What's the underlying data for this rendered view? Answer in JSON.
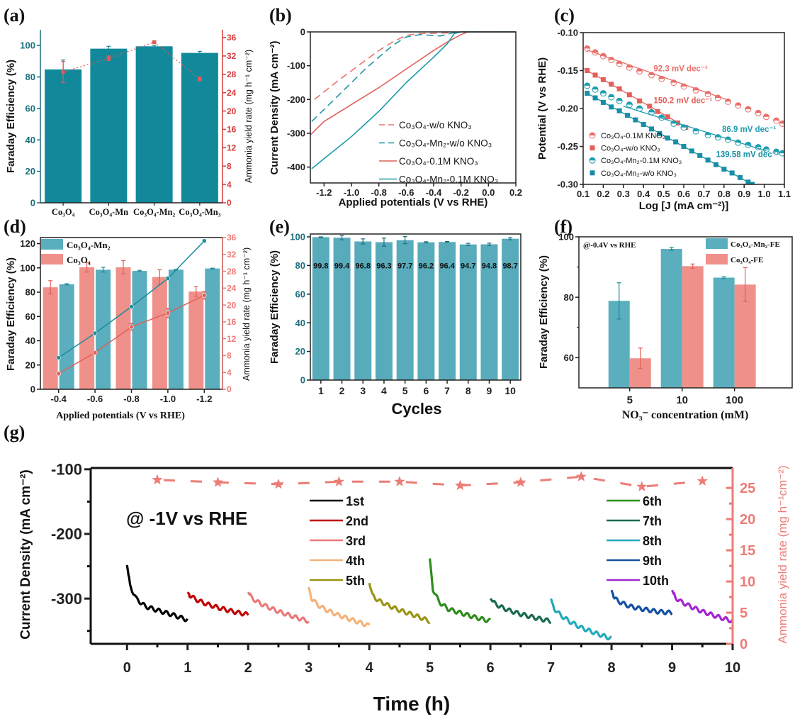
{
  "chart_data": [
    {
      "panel_label": "(a)",
      "type": "bar",
      "categories": [
        "Co₃O₄",
        "Co₃O₄-Mn",
        "Co₃O₄-Mn₂",
        "Co₃O₄-Mn₃"
      ],
      "ylabel": "Faraday Efficiency (%)",
      "y2label": "Ammonia yield rate (mg h⁻¹ cm⁻²)",
      "ylim": [
        0,
        110
      ],
      "y2lim": [
        0,
        37.7
      ],
      "yticks": [
        "0",
        "20",
        "40",
        "60",
        "80",
        "100"
      ],
      "y2ticks": [
        "0",
        "4",
        "8",
        "12",
        "16",
        "20",
        "24",
        "28",
        "32",
        "36"
      ],
      "bars": {
        "values": [
          84.8,
          98.0,
          99.5,
          95.3
        ],
        "errors": [
          6.0,
          1.5,
          0.5,
          1.0
        ]
      },
      "line": {
        "values": [
          28.5,
          31.5,
          35.0,
          27.0
        ],
        "errors": [
          2.3,
          0.5,
          0.3,
          0.4
        ]
      },
      "colors": {
        "bar": "#11899b",
        "line": "#e05a5a",
        "left_axis": "#1b6f7d",
        "right_axis": "#d83a3a"
      }
    },
    {
      "panel_label": "(b)",
      "type": "line",
      "xlabel": "Applied potentials (V vs RHE)",
      "ylabel": "Current Density (mA cm⁻²)",
      "xlim": [
        -1.3,
        0.2
      ],
      "ylim": [
        -447,
        0
      ],
      "xticks": [
        "-1.2",
        "-1.0",
        "-0.8",
        "-0.6",
        "-0.4",
        "-0.2",
        "0.0",
        "0.2"
      ],
      "yticks": [
        "0",
        "-100",
        "-200",
        "-300",
        "-400"
      ],
      "legend": "bottom-right",
      "series": [
        {
          "name": "Co₃O₄-w/o KNO₃",
          "style": "dashed",
          "color": "#e8736c",
          "x": [
            -1.27,
            -1.1,
            -1.0,
            -0.9,
            -0.8,
            -0.7,
            -0.6,
            -0.5,
            -0.3,
            -0.2,
            0.2
          ],
          "y": [
            -200,
            -145,
            -115,
            -85,
            -55,
            -30,
            -10,
            -5,
            -3,
            0,
            0
          ]
        },
        {
          "name": "Co₃O₄-Mn₂-w/o KNO₃",
          "style": "dashed",
          "color": "#1e96a6",
          "x": [
            -1.29,
            -1.1,
            -1.0,
            -0.9,
            -0.8,
            -0.7,
            -0.6,
            -0.5,
            -0.35,
            -0.25,
            -0.2,
            0.2
          ],
          "y": [
            -265,
            -190,
            -150,
            -110,
            -75,
            -40,
            -15,
            -8,
            -12,
            -2,
            0,
            0
          ]
        },
        {
          "name": "Co₃O₄-0.1M KNO₃",
          "style": "solid",
          "color": "#e0605a",
          "x": [
            -1.3,
            -1.2,
            -1.0,
            -0.8,
            -0.6,
            -0.4,
            -0.3,
            -0.2,
            -0.15,
            0.2
          ],
          "y": [
            -305,
            -265,
            -215,
            -165,
            -110,
            -55,
            -30,
            -8,
            0,
            0
          ]
        },
        {
          "name": "Co₃O₄-Mn₂-0.1M KNO₃",
          "style": "solid",
          "color": "#1a9aa8",
          "x": [
            -1.29,
            -1.2,
            -1.0,
            -0.8,
            -0.6,
            -0.4,
            -0.3,
            -0.25,
            -0.2,
            0.2
          ],
          "y": [
            -405,
            -375,
            -310,
            -235,
            -150,
            -75,
            -35,
            -5,
            0,
            0
          ]
        }
      ]
    },
    {
      "panel_label": "(c)",
      "type": "scatter",
      "xlabel": "Log [J (mA cm⁻²)]",
      "ylabel": "Potential (V vs RHE)",
      "xlim": [
        0.1,
        1.1
      ],
      "ylim": [
        -0.3,
        -0.1
      ],
      "xticks": [
        "0.1",
        "0.2",
        "0.3",
        "0.4",
        "0.5",
        "0.6",
        "0.7",
        "0.8",
        "0.9",
        "1.0",
        "1.1"
      ],
      "yticks": [
        "-0.10",
        "-0.15",
        "-0.20",
        "-0.25",
        "-0.30"
      ],
      "legend": "bottom-left",
      "series": [
        {
          "name": "Co₃O₄-0.1M KNO₃",
          "marker": "half-circle",
          "color": "#ea6f6a",
          "x": [
            0.12,
            0.16,
            0.2,
            0.24,
            0.28,
            0.33,
            0.38,
            0.44,
            0.49,
            0.55,
            0.6,
            0.66,
            0.72,
            0.77,
            0.82,
            0.87,
            0.92,
            0.97,
            1.01,
            1.06,
            1.09
          ],
          "y": [
            -0.121,
            -0.126,
            -0.131,
            -0.136,
            -0.141,
            -0.146,
            -0.151,
            -0.156,
            -0.161,
            -0.166,
            -0.171,
            -0.176,
            -0.181,
            -0.186,
            -0.191,
            -0.196,
            -0.201,
            -0.206,
            -0.211,
            -0.216,
            -0.22
          ],
          "fit": {
            "x": [
              0.12,
              0.82
            ],
            "y": [
              -0.123,
              -0.189
            ]
          },
          "slope_label": "92.3 mV dec⁻¹"
        },
        {
          "name": "Co₃O₄-w/o KNO₃",
          "marker": "square",
          "color": "#e45f5a",
          "x": [
            0.12,
            0.16,
            0.2,
            0.24,
            0.28,
            0.33,
            0.38,
            0.43,
            0.47,
            0.52,
            0.57,
            0.61
          ],
          "y": [
            -0.15,
            -0.156,
            -0.162,
            -0.168,
            -0.174,
            -0.182,
            -0.19,
            -0.197,
            -0.204,
            -0.211,
            -0.219,
            -0.225
          ],
          "fit": {
            "x": [
              0.1,
              0.62
            ],
            "y": [
              -0.147,
              -0.226
            ]
          },
          "slope_label": "150.2 mV dec⁻¹"
        },
        {
          "name": "Co₃O₄-Mn₂-0.1M KNO₃",
          "marker": "half-circle",
          "color": "#1e9db0",
          "x": [
            0.12,
            0.16,
            0.2,
            0.24,
            0.28,
            0.33,
            0.38,
            0.44,
            0.49,
            0.55,
            0.6,
            0.66,
            0.72,
            0.77,
            0.82,
            0.87,
            0.92,
            0.97,
            1.01,
            1.06,
            1.09
          ],
          "y": [
            -0.17,
            -0.175,
            -0.18,
            -0.185,
            -0.19,
            -0.195,
            -0.2,
            -0.205,
            -0.212,
            -0.22,
            -0.225,
            -0.23,
            -0.235,
            -0.238,
            -0.241,
            -0.245,
            -0.248,
            -0.251,
            -0.254,
            -0.257,
            -0.259
          ],
          "fit": {
            "x": [
              0.3,
              1.01
            ],
            "y": [
              -0.197,
              -0.256
            ]
          },
          "slope_label": "86.9 mV dec⁻¹"
        },
        {
          "name": "Co₃O₄-Mn₂-w/o KNO₃",
          "marker": "square",
          "color": "#178fa6",
          "x": [
            0.12,
            0.16,
            0.2,
            0.24,
            0.28,
            0.32,
            0.36,
            0.4,
            0.44,
            0.48,
            0.52,
            0.56,
            0.6,
            0.64,
            0.68,
            0.72,
            0.76,
            0.8,
            0.84,
            0.88,
            0.92,
            0.94
          ],
          "y": [
            -0.18,
            -0.186,
            -0.192,
            -0.198,
            -0.203,
            -0.209,
            -0.215,
            -0.221,
            -0.227,
            -0.233,
            -0.239,
            -0.244,
            -0.25,
            -0.256,
            -0.262,
            -0.268,
            -0.274,
            -0.28,
            -0.285,
            -0.291,
            -0.297,
            -0.3
          ],
          "fit": {
            "x": [
              0.12,
              0.94
            ],
            "y": [
              -0.18,
              -0.3
            ]
          },
          "slope_label": "139.58 mV dec⁻¹"
        }
      ]
    },
    {
      "panel_label": "(d)",
      "type": "bar",
      "xlabel": "Applied potentials (V vs RHE)",
      "ylabel": "Faraday Efficiency (%)",
      "y2label": "Ammonia yield rate (mg h⁻¹ cm⁻²)",
      "categories": [
        "-0.4",
        "-0.6",
        "-0.8",
        "-1.0",
        "-1.2"
      ],
      "ylim": [
        0,
        125
      ],
      "y2lim": [
        0,
        36
      ],
      "yticks": [
        "0",
        "20",
        "40",
        "60",
        "80",
        "100",
        "120"
      ],
      "y2ticks": [
        "0",
        "4",
        "8",
        "12",
        "16",
        "20",
        "24",
        "28",
        "32",
        "36"
      ],
      "legend": "top-left",
      "series": [
        {
          "name": "Co₃O₄-Mn₂",
          "color": "#5aaebe",
          "line_color": "#1a8c9c",
          "fe": [
            86.5,
            98.5,
            97.5,
            98.5,
            99.5
          ],
          "fe_errors": [
            0.5,
            2.0,
            0.5,
            0.3,
            0.3
          ],
          "yield": [
            7.5,
            13.3,
            19.6,
            26.3,
            35.2
          ],
          "yield_errors": [
            0.3,
            0.3,
            0.3,
            0.4,
            0.3
          ]
        },
        {
          "name": "Co₃O₄",
          "color": "#f0908a",
          "line_color": "#e0605a",
          "fe": [
            84.0,
            100.5,
            100.5,
            92.5,
            80.5
          ],
          "fe_errors": [
            5.5,
            4.0,
            5.5,
            6.0,
            4.0
          ],
          "yield": [
            3.7,
            8.7,
            14.8,
            18.1,
            22.3
          ],
          "yield_errors": [
            0.3,
            0.4,
            0.8,
            1.1,
            0.9
          ]
        }
      ],
      "colors": {
        "right_axis": "#ee7a74"
      }
    },
    {
      "panel_label": "(e)",
      "type": "bar",
      "xlabel": "Cycles",
      "ylabel": "Faraday Efficiency (%)",
      "categories": [
        "1",
        "2",
        "3",
        "4",
        "5",
        "6",
        "7",
        "8",
        "9",
        "10"
      ],
      "values": [
        99.8,
        99.4,
        96.8,
        96.3,
        97.7,
        96.2,
        96.4,
        94.7,
        94.8,
        98.7
      ],
      "data_labels": [
        "99.8",
        "99.4",
        "96.8",
        "96.3",
        "97.7",
        "96.2",
        "96.4",
        "94.7",
        "94.8",
        "98.7"
      ],
      "errors": [
        0.2,
        1.5,
        1.8,
        2.8,
        2.5,
        0.4,
        0.4,
        0.8,
        0.8,
        0.8
      ],
      "ylim": [
        0,
        102
      ],
      "yticks": [
        "0",
        "20",
        "40",
        "60",
        "80",
        "100"
      ],
      "colors": {
        "bar": "#58abbb",
        "axis": "#1b6f7d"
      }
    },
    {
      "panel_label": "(f)",
      "type": "bar",
      "xlabel": "NO₃⁻ concentration (mM)",
      "ylabel": "Faraday Efficiency (%)",
      "annotation": "@-0.4V vs RHE",
      "categories": [
        "5",
        "10",
        "100"
      ],
      "ylim": [
        50,
        100
      ],
      "yticks": [
        "60",
        "80",
        "100"
      ],
      "legend": "top-right",
      "series": [
        {
          "name": "Co₃O₄-Mn₂-FE",
          "color": "#5aaebe",
          "values": [
            78.8,
            96.0,
            86.5
          ],
          "errors": [
            6.0,
            0.5,
            0.3
          ]
        },
        {
          "name": "Co₃O₄-FE",
          "color": "#f0908a",
          "values": [
            59.8,
            90.3,
            84.2
          ],
          "errors": [
            3.4,
            0.7,
            5.6
          ]
        }
      ]
    },
    {
      "panel_label": "(g)",
      "type": "line",
      "xlabel": "Time (h)",
      "ylabel": "Current Density (mA cm⁻²)",
      "y2label": "Ammonia yield rate (mg h⁻¹cm⁻²)",
      "annotation": "@ -1V vs RHE",
      "xlim": [
        -0.6,
        10
      ],
      "ylim": [
        -370,
        -98
      ],
      "y2lim": [
        0,
        28.2
      ],
      "xticks": [
        "0",
        "1",
        "2",
        "3",
        "4",
        "5",
        "6",
        "7",
        "8",
        "9",
        "10"
      ],
      "yticks": [
        "-100",
        "-200",
        "-300"
      ],
      "y2ticks": [
        "0",
        "5",
        "10",
        "15",
        "20",
        "25"
      ],
      "segment_offsets_h": [
        0,
        0.05,
        0.15,
        0.3,
        0.5,
        0.75,
        1.0
      ],
      "segments": [
        {
          "name": "1st",
          "color": "#000000",
          "y": [
            -248,
            -280,
            -300,
            -312,
            -318,
            -325,
            -333
          ]
        },
        {
          "name": "2nd",
          "color": "#c00000",
          "y": [
            -290,
            -296,
            -302,
            -308,
            -314,
            -320,
            -325
          ]
        },
        {
          "name": "3rd",
          "color": "#ea7a78",
          "y": [
            -290,
            -298,
            -305,
            -312,
            -320,
            -328,
            -335
          ]
        },
        {
          "name": "4th",
          "color": "#f4b27a",
          "y": [
            -282,
            -300,
            -310,
            -318,
            -326,
            -334,
            -342
          ]
        },
        {
          "name": "5th",
          "color": "#9a9414",
          "y": [
            -276,
            -295,
            -303,
            -310,
            -318,
            -326,
            -335
          ]
        },
        {
          "name": "6th",
          "color": "#2e8c1c",
          "y": [
            -238,
            -285,
            -305,
            -316,
            -322,
            -329,
            -335
          ]
        },
        {
          "name": "7th",
          "color": "#1a6a4c",
          "y": [
            -300,
            -306,
            -312,
            -318,
            -324,
            -330,
            -335
          ]
        },
        {
          "name": "8th",
          "color": "#22a9b8",
          "y": [
            -300,
            -315,
            -325,
            -335,
            -345,
            -354,
            -362
          ]
        },
        {
          "name": "9th",
          "color": "#1450a0",
          "y": [
            -287,
            -300,
            -306,
            -312,
            -316,
            -320,
            -322
          ]
        },
        {
          "name": "10th",
          "color": "#a424d0",
          "y": [
            -287,
            -298,
            -305,
            -312,
            -320,
            -328,
            -335
          ]
        }
      ],
      "yield": {
        "x": [
          0.5,
          1.5,
          2.5,
          3.5,
          4.5,
          5.5,
          6.5,
          7.5,
          8.5,
          9.5
        ],
        "values": [
          26.3,
          25.9,
          25.6,
          26.0,
          26.0,
          25.4,
          25.9,
          26.8,
          25.2,
          26.1
        ],
        "color": "#ec7c76",
        "marker": "star",
        "style": "dashed"
      }
    }
  ]
}
